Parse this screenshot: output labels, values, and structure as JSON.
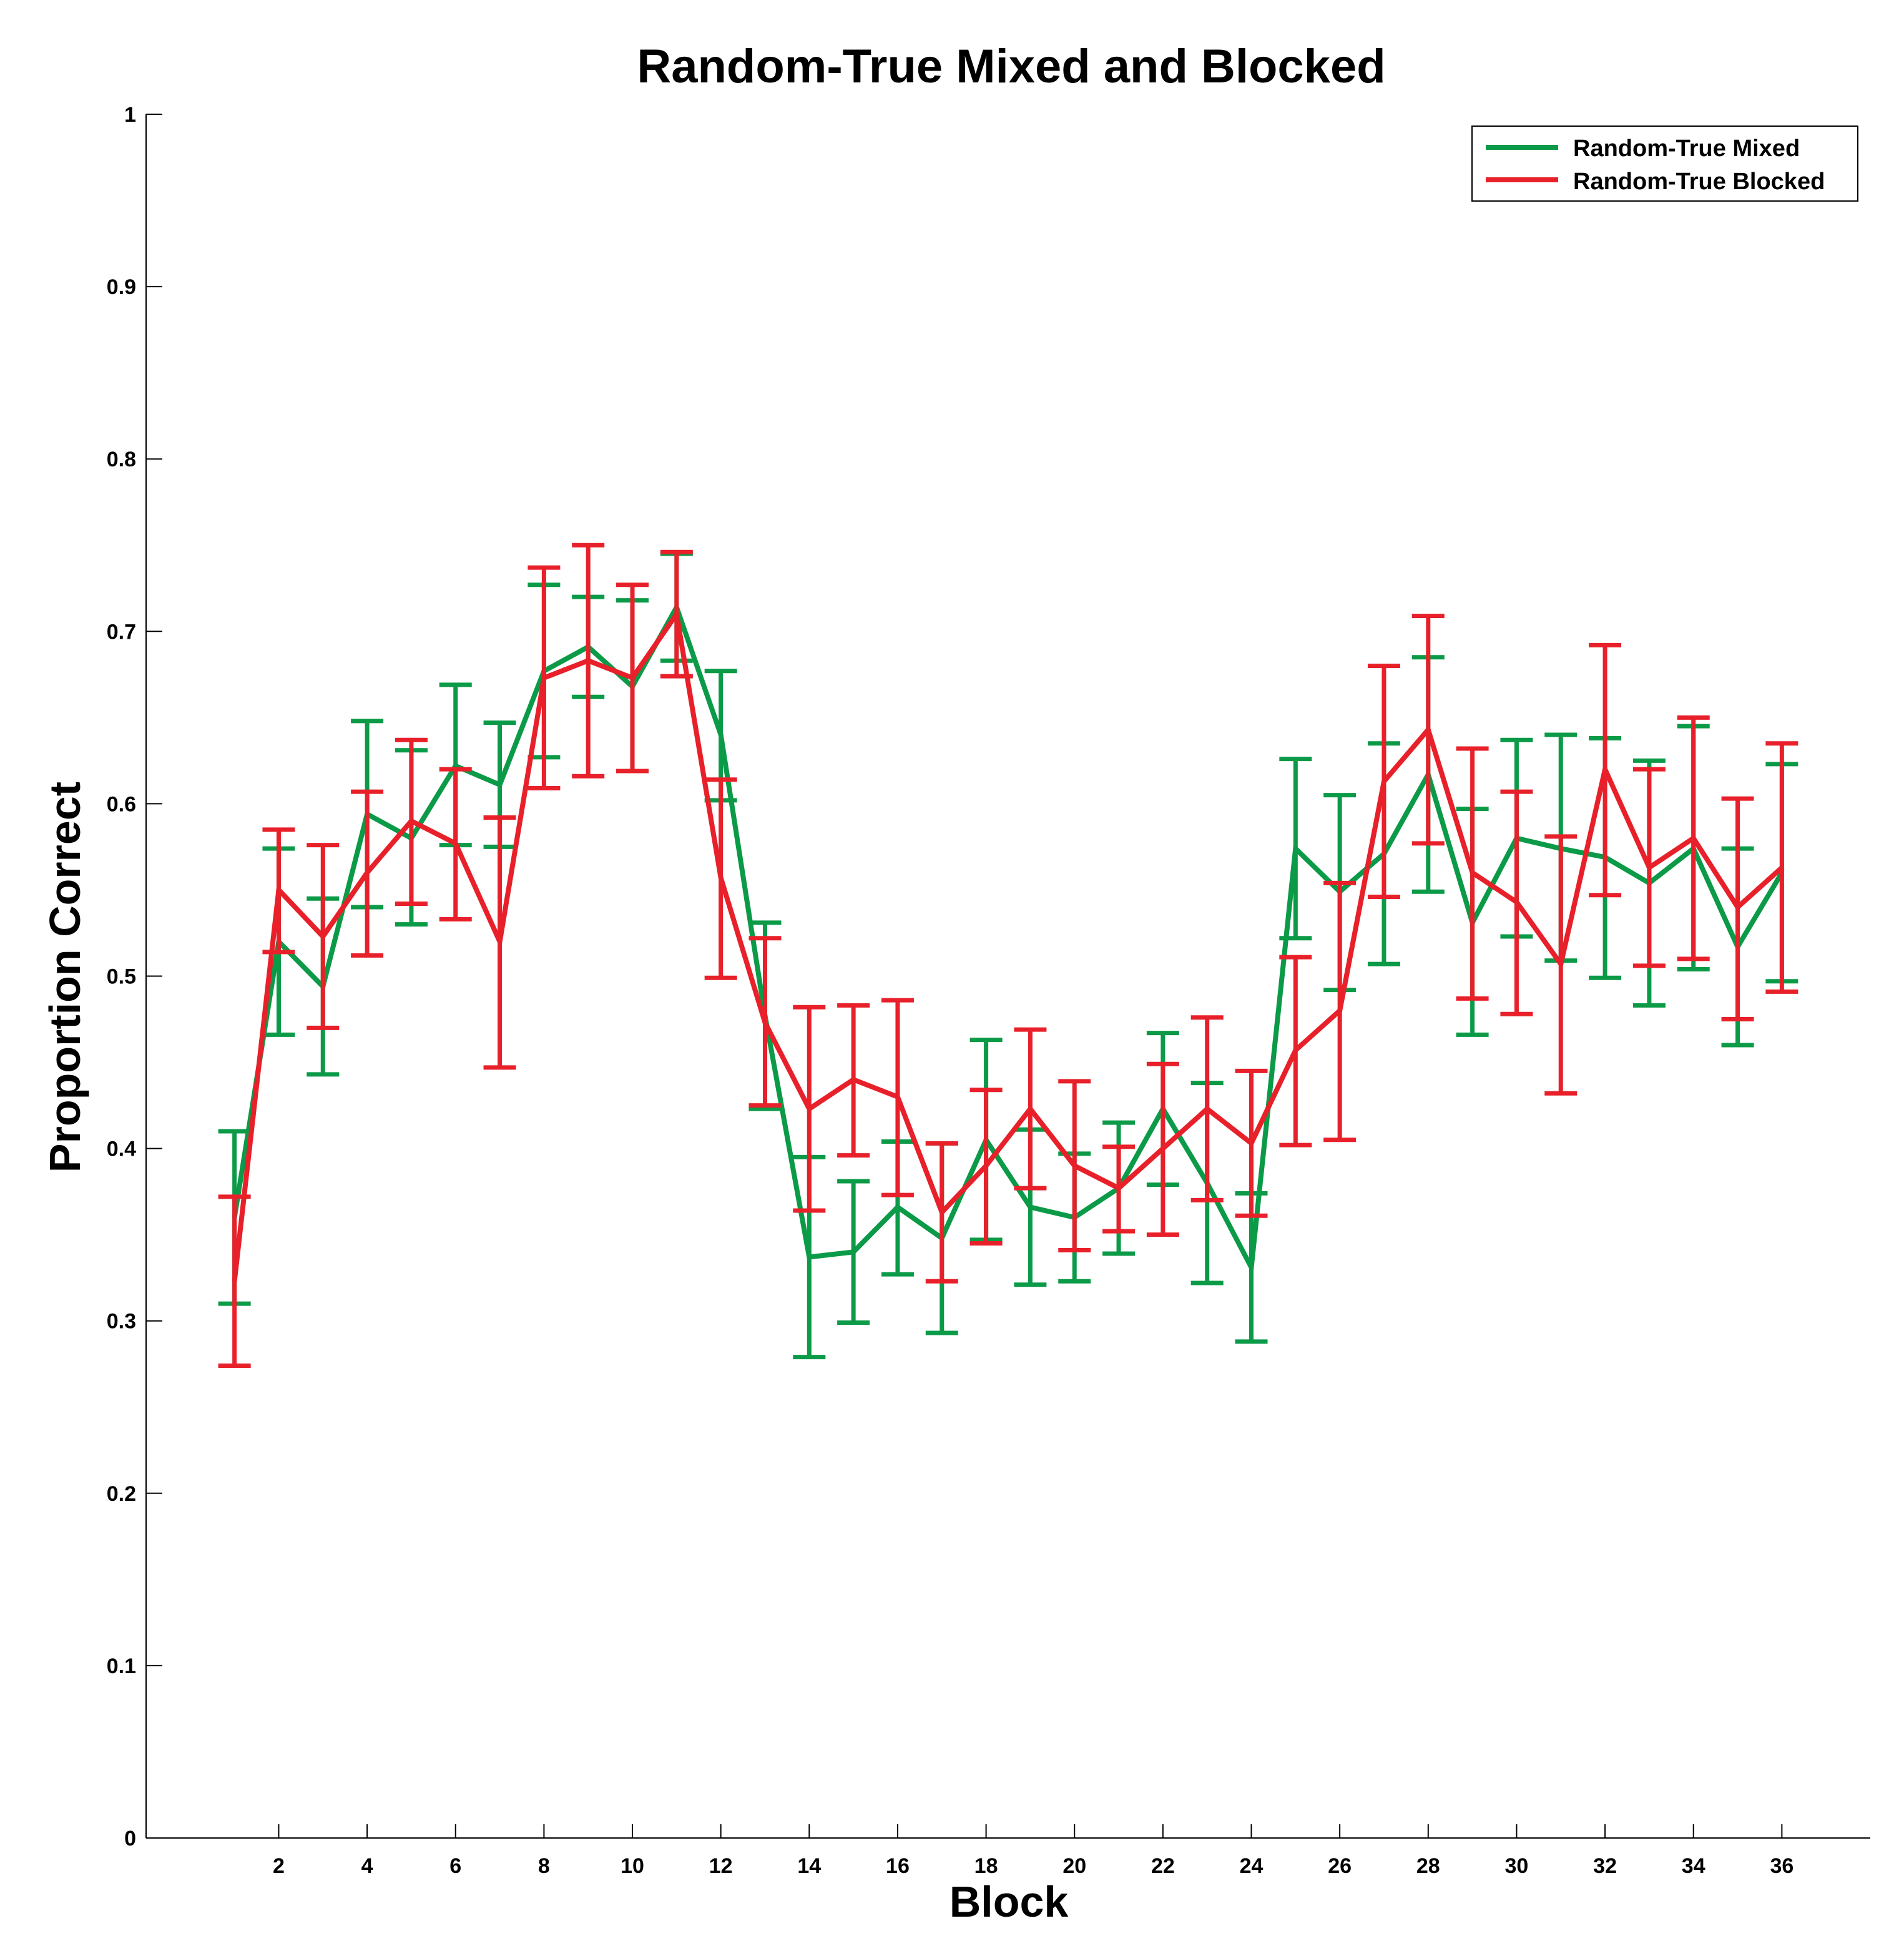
{
  "chart_data": {
    "type": "line",
    "title": "Random-True Mixed and Blocked",
    "xlabel": "Block",
    "ylabel": "Proportion Correct",
    "xlim": [
      -1,
      38
    ],
    "ylim": [
      0,
      1
    ],
    "xticks": [
      2,
      4,
      6,
      8,
      10,
      12,
      14,
      16,
      18,
      20,
      22,
      24,
      26,
      28,
      30,
      32,
      34,
      36
    ],
    "yticks": [
      0,
      0.1,
      0.2,
      0.3,
      0.4,
      0.5,
      0.6,
      0.7,
      0.8,
      0.9,
      1
    ],
    "ytick_labels": [
      "0",
      "0.1",
      "0.2",
      "0.3",
      "0.4",
      "0.5",
      "0.6",
      "0.7",
      "0.8",
      "0.9",
      "1"
    ],
    "grid": false,
    "legend_position": "top-right",
    "x": [
      1,
      2,
      3,
      4,
      5,
      6,
      7,
      8,
      9,
      10,
      11,
      12,
      13,
      14,
      15,
      16,
      17,
      18,
      19,
      20,
      21,
      22,
      23,
      24,
      25,
      26,
      27,
      28,
      29,
      30,
      31,
      32,
      33,
      34,
      35,
      36
    ],
    "series": [
      {
        "name": "Random-True Mixed",
        "color": "#0b9a47",
        "values": [
          0.36,
          0.52,
          0.494,
          0.594,
          0.58,
          0.622,
          0.611,
          0.677,
          0.691,
          0.668,
          0.714,
          0.64,
          0.477,
          0.337,
          0.34,
          0.366,
          0.348,
          0.405,
          0.366,
          0.36,
          0.377,
          0.423,
          0.38,
          0.331,
          0.574,
          0.549,
          0.571,
          0.617,
          0.531,
          0.58,
          0.574,
          0.569,
          0.554,
          0.574,
          0.517,
          0.56
        ],
        "err_low": [
          0.31,
          0.466,
          0.443,
          0.54,
          0.53,
          0.576,
          0.575,
          0.627,
          0.662,
          0.619,
          0.683,
          0.602,
          0.423,
          0.279,
          0.299,
          0.327,
          0.293,
          0.347,
          0.321,
          0.323,
          0.339,
          0.379,
          0.322,
          0.288,
          0.522,
          0.492,
          0.507,
          0.549,
          0.466,
          0.523,
          0.509,
          0.499,
          0.483,
          0.504,
          0.46,
          0.497
        ],
        "err_high": [
          0.41,
          0.574,
          0.545,
          0.648,
          0.631,
          0.669,
          0.647,
          0.727,
          0.72,
          0.718,
          0.745,
          0.677,
          0.531,
          0.395,
          0.381,
          0.404,
          0.403,
          0.463,
          0.411,
          0.397,
          0.415,
          0.467,
          0.438,
          0.374,
          0.626,
          0.605,
          0.635,
          0.685,
          0.597,
          0.637,
          0.64,
          0.638,
          0.625,
          0.645,
          0.574,
          0.623
        ]
      },
      {
        "name": "Random-True Blocked",
        "color": "#e8202a",
        "values": [
          0.323,
          0.55,
          0.523,
          0.56,
          0.59,
          0.577,
          0.52,
          0.673,
          0.683,
          0.673,
          0.71,
          0.557,
          0.473,
          0.423,
          0.44,
          0.43,
          0.363,
          0.39,
          0.423,
          0.39,
          0.377,
          0.4,
          0.423,
          0.403,
          0.457,
          0.48,
          0.613,
          0.643,
          0.56,
          0.543,
          0.507,
          0.62,
          0.563,
          0.58,
          0.54,
          0.563
        ],
        "err_low": [
          0.274,
          0.514,
          0.47,
          0.512,
          0.542,
          0.533,
          0.447,
          0.609,
          0.616,
          0.619,
          0.674,
          0.499,
          0.425,
          0.364,
          0.396,
          0.373,
          0.323,
          0.345,
          0.377,
          0.341,
          0.352,
          0.35,
          0.37,
          0.361,
          0.402,
          0.405,
          0.546,
          0.577,
          0.487,
          0.478,
          0.432,
          0.547,
          0.506,
          0.51,
          0.475,
          0.491
        ],
        "err_high": [
          0.372,
          0.585,
          0.576,
          0.607,
          0.637,
          0.62,
          0.592,
          0.737,
          0.75,
          0.727,
          0.746,
          0.614,
          0.522,
          0.482,
          0.483,
          0.486,
          0.403,
          0.434,
          0.469,
          0.439,
          0.401,
          0.449,
          0.476,
          0.445,
          0.511,
          0.554,
          0.68,
          0.709,
          0.632,
          0.607,
          0.581,
          0.692,
          0.62,
          0.65,
          0.603,
          0.635
        ]
      }
    ]
  }
}
